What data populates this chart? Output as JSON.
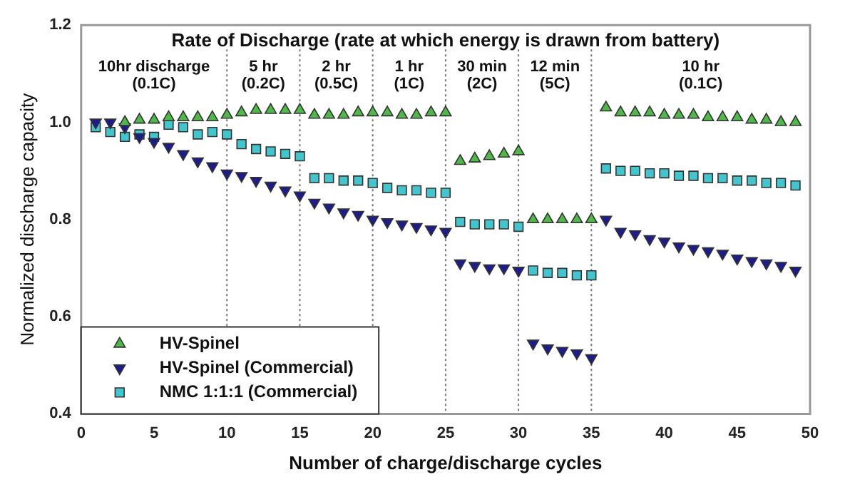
{
  "chart_data": {
    "type": "scatter",
    "title": "Rate of Discharge (rate at which energy is drawn from battery)",
    "xlabel": "Number of charge/discharge cycles",
    "ylabel": "Normalized discharge capacity",
    "x": [
      1,
      2,
      3,
      4,
      5,
      6,
      7,
      8,
      9,
      10,
      11,
      12,
      13,
      14,
      15,
      16,
      17,
      18,
      19,
      20,
      21,
      22,
      23,
      24,
      25,
      26,
      27,
      28,
      29,
      30,
      31,
      32,
      33,
      34,
      35,
      36,
      37,
      38,
      39,
      40,
      41,
      42,
      43,
      44,
      45,
      46,
      47,
      48,
      49
    ],
    "series": [
      {
        "name": "HV-Spinel",
        "color": "#4fb848",
        "marker": "triangle",
        "values": [
          null,
          null,
          1.0,
          1.005,
          1.005,
          1.01,
          1.01,
          1.01,
          1.01,
          1.015,
          1.02,
          1.025,
          1.025,
          1.025,
          1.025,
          1.015,
          1.015,
          1.015,
          1.02,
          1.02,
          1.02,
          1.015,
          1.015,
          1.02,
          1.02,
          0.92,
          0.925,
          0.93,
          0.935,
          0.94,
          0.8,
          0.8,
          0.8,
          0.8,
          0.8,
          1.03,
          1.02,
          1.02,
          1.02,
          1.015,
          1.015,
          1.015,
          1.01,
          1.01,
          1.01,
          1.005,
          1.005,
          1.0,
          1.0
        ]
      },
      {
        "name": "HV-Spinel (Commercial)",
        "color": "#1c1c8a",
        "marker": "triangle-down",
        "values": [
          1.0,
          1.0,
          0.99,
          0.97,
          0.96,
          0.95,
          0.935,
          0.92,
          0.91,
          0.895,
          0.89,
          0.88,
          0.87,
          0.86,
          0.85,
          0.835,
          0.825,
          0.815,
          0.81,
          0.8,
          0.795,
          0.79,
          0.785,
          0.78,
          0.775,
          0.71,
          0.705,
          0.7,
          0.7,
          0.695,
          0.545,
          0.535,
          0.53,
          0.525,
          0.515,
          0.8,
          0.775,
          0.77,
          0.76,
          0.755,
          0.745,
          0.74,
          0.735,
          0.73,
          0.72,
          0.715,
          0.71,
          0.705,
          0.695
        ]
      },
      {
        "name": "NMC 1:1:1 (Commercial)",
        "color": "#44c4cc",
        "marker": "square",
        "values": [
          0.99,
          0.98,
          0.97,
          0.975,
          0.97,
          0.995,
          0.99,
          0.975,
          0.98,
          0.975,
          0.955,
          0.945,
          0.94,
          0.935,
          0.93,
          0.885,
          0.885,
          0.88,
          0.88,
          0.875,
          0.865,
          0.86,
          0.86,
          0.855,
          0.855,
          0.795,
          0.79,
          0.79,
          0.79,
          0.785,
          0.695,
          0.69,
          0.69,
          0.685,
          0.685,
          0.905,
          0.9,
          0.9,
          0.895,
          0.895,
          0.89,
          0.89,
          0.885,
          0.885,
          0.88,
          0.88,
          0.875,
          0.875,
          0.87
        ]
      }
    ],
    "xlim": [
      0,
      50
    ],
    "xticks": [
      0,
      5,
      10,
      15,
      20,
      25,
      30,
      35,
      40,
      45,
      50
    ],
    "ylim": [
      0.4,
      1.2
    ],
    "yticks": [
      {
        "value": 0.4,
        "label": "0.4"
      },
      {
        "value": 0.6,
        "label": "0.6"
      },
      {
        "value": 0.8,
        "label": "0.8"
      },
      {
        "value": 1.0,
        "label": "1.0"
      },
      {
        "value": 1.2,
        "label": "1.2"
      }
    ],
    "ref_lines": [
      {
        "axis": "x",
        "value": 10,
        "line_style": "dotted"
      },
      {
        "axis": "x",
        "value": 15,
        "line_style": "dotted"
      },
      {
        "axis": "x",
        "value": 20,
        "line_style": "dotted"
      },
      {
        "axis": "x",
        "value": 25,
        "line_style": "dotted"
      },
      {
        "axis": "x",
        "value": 30,
        "line_style": "dotted"
      },
      {
        "axis": "x",
        "value": 35,
        "line_style": "dotted"
      }
    ],
    "annotations": [
      "10hr discharge\n(0.1C)",
      "5 hr\n(0.2C)",
      "2 hr\n(0.5C)",
      "1 hr\n(1C)",
      "30 min\n(2C)",
      "12 min\n(5C)",
      "10 hr\n(0.1C)"
    ],
    "grid": false,
    "legend": "bottom left"
  }
}
